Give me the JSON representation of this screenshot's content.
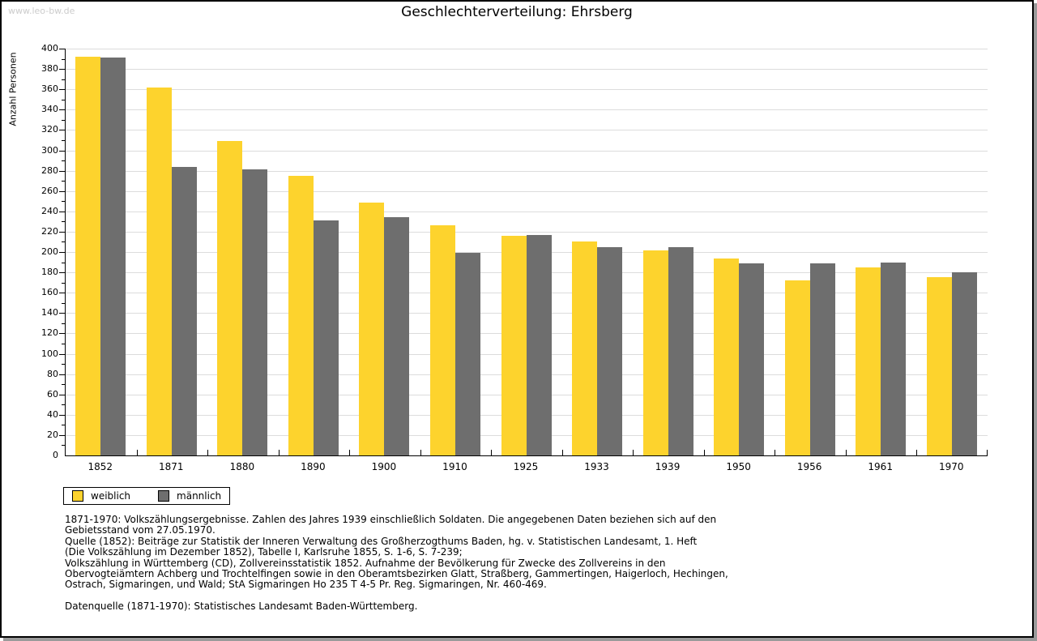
{
  "page": {
    "watermark": "www.leo-bw.de",
    "title": "Geschlechterverteilung: Ehrsberg"
  },
  "chart_data": {
    "type": "bar",
    "title": "Geschlechterverteilung: Ehrsberg",
    "xlabel": "",
    "ylabel": "Anzahl Personen",
    "ylim": [
      0,
      400
    ],
    "ytick_major_step": 20,
    "ytick_minor_step": 10,
    "grid": true,
    "legend_position": "bottom-left",
    "categories": [
      "1852",
      "1871",
      "1880",
      "1890",
      "1900",
      "1910",
      "1925",
      "1933",
      "1939",
      "1950",
      "1956",
      "1961",
      "1970"
    ],
    "series": [
      {
        "name": "weiblich",
        "color": "#fdd32d",
        "values": [
          392,
          362,
          309,
          275,
          249,
          226,
          216,
          210,
          202,
          194,
          172,
          185,
          175
        ]
      },
      {
        "name": "männlich",
        "color": "#6e6e6e",
        "values": [
          391,
          284,
          281,
          231,
          234,
          199,
          217,
          205,
          205,
          189,
          189,
          190,
          180
        ]
      }
    ]
  },
  "legend": {
    "items": [
      {
        "label": "weiblich",
        "color": "#fdd32d"
      },
      {
        "label": "männlich",
        "color": "#6e6e6e"
      }
    ]
  },
  "footnotes": {
    "lines": [
      "1871-1970: Volkszählungsergebnisse. Zahlen des Jahres 1939 einschließlich Soldaten. Die angegebenen Daten beziehen sich auf den",
      "Gebietsstand vom 27.05.1970.",
      "Quelle (1852): Beiträge zur Statistik der Inneren Verwaltung des Großherzogthums Baden, hg. v. Statistischen Landesamt, 1. Heft",
      "(Die Volkszählung im Dezember 1852), Tabelle I, Karlsruhe 1855, S. 1-6, S. 7-239;",
      "Volkszählung in Württemberg (CD), Zollvereinsstatistik 1852. Aufnahme der Bevölkerung für Zwecke des Zollvereins in den",
      "Obervogteiämtern Achberg und Trochtelfingen sowie in den Oberamtsbezirken Glatt, Straßberg, Gammertingen, Haigerloch, Hechingen,",
      "Ostrach, Sigmaringen, und Wald; StA Sigmaringen Ho 235 T 4-5 Pr. Reg. Sigmaringen, Nr. 460-469."
    ],
    "datasource": "Datenquelle (1871-1970): Statistisches Landesamt Baden-Württemberg."
  },
  "colors": {
    "gridline": "#dcdcdc",
    "axis": "#000000",
    "watermark": "#cccccc",
    "page_shadow": "#9a9a9a"
  }
}
